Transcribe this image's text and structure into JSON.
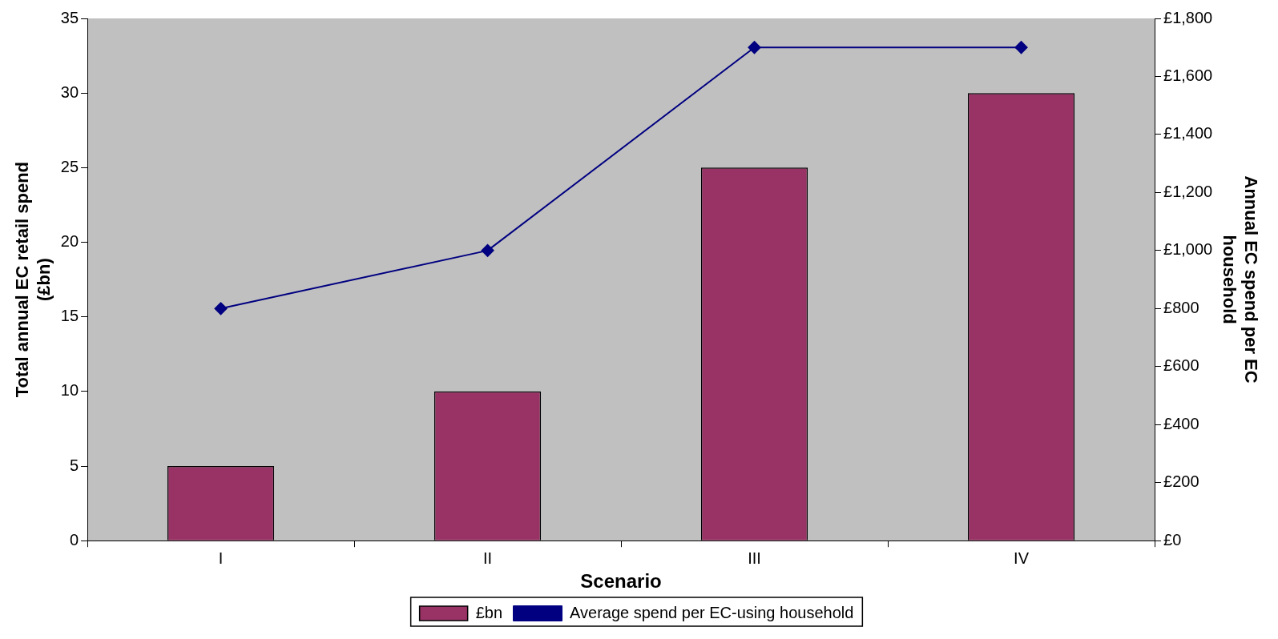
{
  "chart_data": {
    "type": "bar",
    "xlabel": "Scenario",
    "ylabel": "Total annual EC retail spend\n(£bn)",
    "y2label": "Annual EC spend per EC\nhousehold",
    "categories": [
      "I",
      "II",
      "III",
      "IV"
    ],
    "series": [
      {
        "name": "£bn",
        "color": "#993366",
        "values": [
          5,
          10,
          25,
          30
        ]
      },
      {
        "name": "Average spend per EC-using household",
        "type": "line",
        "axis": "y2",
        "color": "#000080",
        "marker": "diamond",
        "values": [
          800,
          1000,
          1700,
          1700
        ]
      }
    ],
    "ylim": [
      0,
      35
    ],
    "yticks": [
      0,
      5,
      10,
      15,
      20,
      25,
      30,
      35
    ],
    "y2lim": [
      0,
      1800
    ],
    "y2ticks": [
      {
        "value": 0,
        "label": "£0"
      },
      {
        "value": 200,
        "label": "£200"
      },
      {
        "value": 400,
        "label": "£400"
      },
      {
        "value": 600,
        "label": "£600"
      },
      {
        "value": 800,
        "label": "£800"
      },
      {
        "value": 1000,
        "label": "£1,000"
      },
      {
        "value": 1200,
        "label": "£1,200"
      },
      {
        "value": 1400,
        "label": "£1,400"
      },
      {
        "value": 1600,
        "label": "£1,600"
      },
      {
        "value": 1800,
        "label": "£1,800"
      }
    ],
    "grid": false,
    "legend": "bottom"
  }
}
